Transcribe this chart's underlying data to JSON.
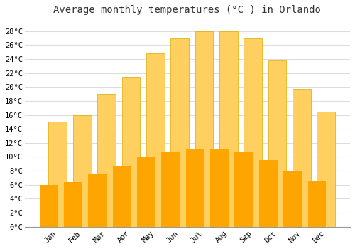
{
  "title": "Average monthly temperatures (°C ) in Orlando",
  "months": [
    "Jan",
    "Feb",
    "Mar",
    "Apr",
    "May",
    "Jun",
    "Jul",
    "Aug",
    "Sep",
    "Oct",
    "Nov",
    "Dec"
  ],
  "values": [
    15.0,
    16.0,
    19.0,
    21.5,
    24.8,
    27.0,
    28.0,
    28.0,
    27.0,
    23.8,
    19.7,
    16.5
  ],
  "bar_color_bottom": "#FFA500",
  "bar_color_top": "#FFD060",
  "bar_edge_color": "#DDAA00",
  "background_color": "#FFFFFF",
  "plot_bg_color": "#FFFFFF",
  "grid_color": "#DDDDDD",
  "ytick_labels": [
    "0°C",
    "2°C",
    "4°C",
    "6°C",
    "8°C",
    "10°C",
    "12°C",
    "14°C",
    "16°C",
    "18°C",
    "20°C",
    "22°C",
    "24°C",
    "26°C",
    "28°C"
  ],
  "ytick_values": [
    0,
    2,
    4,
    6,
    8,
    10,
    12,
    14,
    16,
    18,
    20,
    22,
    24,
    26,
    28
  ],
  "ylim": [
    0,
    29.5
  ],
  "title_fontsize": 10,
  "tick_fontsize": 7.5,
  "font_family": "monospace",
  "figsize": [
    5.0,
    3.5
  ],
  "dpi": 100
}
